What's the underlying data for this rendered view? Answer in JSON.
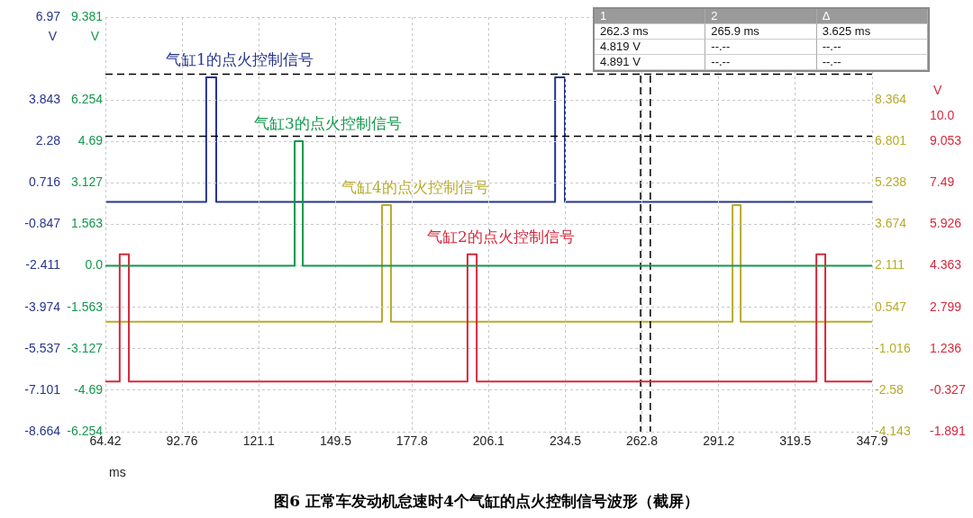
{
  "chart_data": [
    {
      "type": "line",
      "title": "图6 正常车发动机怠速时4个气缸的点火控制信号波形（截屏）",
      "xlabel": "ms",
      "ylabel": "V",
      "xlim": [
        64.42,
        347.9
      ],
      "xticks": [
        64.42,
        92.76,
        121.1,
        149.5,
        177.8,
        206.1,
        234.5,
        262.8,
        291.2,
        319.5,
        347.9
      ],
      "ylim": [
        -8.664,
        6.97
      ],
      "yticks": [
        6.97,
        3.843,
        2.28,
        0.716,
        -0.847,
        -2.411,
        -3.974,
        -5.537,
        -7.101,
        -8.664
      ],
      "y2lim": [
        -4.143,
        11.491
      ],
      "y2ticks": [
        8.364,
        6.801,
        5.238,
        3.674,
        2.111,
        0.547,
        -1.016,
        -2.58,
        -4.143
      ],
      "grid": true,
      "legend": false,
      "marker": "none",
      "line_style": "solid",
      "series": [
        {
          "name": "气缸1的点火控制信号",
          "color": "#26348c",
          "x": [
            64.42,
            101.7,
            101.7,
            105.4,
            105.4,
            230.7,
            230.7,
            234.3,
            234.3,
            347.9
          ],
          "values": [
            0,
            0,
            4.7,
            4.7,
            0,
            0,
            4.7,
            4.7,
            0,
            0
          ]
        },
        {
          "name": "气缸4的点火控制信号",
          "color": "#b8aa2a",
          "axis": "y2",
          "x": [
            64.42,
            166.7,
            166.7,
            170.0,
            170.0,
            296.3,
            296.3,
            299.3,
            299.3,
            347.9
          ],
          "values": [
            0,
            0,
            4.4,
            4.4,
            0,
            0,
            4.4,
            4.4,
            0,
            0
          ]
        }
      ],
      "ref_lines": [
        {
          "axis": "x",
          "value": 262.3,
          "label": null,
          "color": "#000000",
          "line_style": "dashed"
        },
        {
          "axis": "x",
          "value": 265.9,
          "label": null,
          "color": "#000000",
          "line_style": "dashed"
        },
        {
          "axis": "y",
          "value": 4.819,
          "label": null,
          "color": "#000000",
          "line_style": "dashed"
        }
      ],
      "annotations": [
        "1",
        "2",
        "Δ",
        "262.3 ms",
        "265.9 ms",
        "3.625 ms",
        "4.819 V",
        "--.--",
        "--.--",
        "4.891 V",
        "--.--",
        "--.--"
      ]
    },
    {
      "type": "line",
      "ylabel": "V",
      "y2label": "V",
      "tick_labels": "y",
      "xlim": [
        64.42,
        347.9
      ],
      "xticks": [
        64.42,
        92.76,
        121.1,
        149.5,
        177.8,
        206.1,
        234.5,
        262.8,
        291.2,
        319.5,
        347.9
      ],
      "ylim": [
        -6.254,
        9.381
      ],
      "yticks": [
        9.381,
        6.254,
        4.69,
        3.127,
        1.563,
        {
          "value": 0,
          "label": "0.0"
        },
        -1.563,
        -3.127,
        -4.69,
        -6.254
      ],
      "y2lim": [
        -1.891,
        13.743
      ],
      "y2ticks": [
        {
          "value": 10,
          "label": "10.0"
        },
        9.053,
        7.49,
        5.926,
        4.363,
        2.799,
        1.236,
        -0.327,
        -1.891
      ],
      "grid": true,
      "legend": false,
      "marker": "none",
      "line_style": "solid",
      "series": [
        {
          "name": "气缸3的点火控制信号",
          "color": "#12974a",
          "x": [
            64.42,
            134.4,
            134.4,
            137.4,
            137.4,
            347.9
          ],
          "values": [
            0,
            0,
            4.7,
            4.7,
            0,
            0
          ]
        },
        {
          "name": "气缸2的点火控制信号",
          "color": "#d6283c",
          "axis": "y2",
          "x": [
            64.42,
            69.7,
            69.7,
            73.1,
            73.1,
            198.3,
            198.3,
            201.7,
            201.7,
            327.3,
            327.3,
            330.6,
            330.6,
            347.9
          ],
          "values": [
            0,
            0,
            4.8,
            4.8,
            0,
            0,
            4.8,
            4.8,
            0,
            0,
            4.8,
            4.8,
            0,
            0
          ]
        }
      ],
      "ref_lines": [
        {
          "axis": "y",
          "value": 4.891,
          "label": null,
          "color": "#000000",
          "line_style": "dashed"
        }
      ]
    }
  ]
}
